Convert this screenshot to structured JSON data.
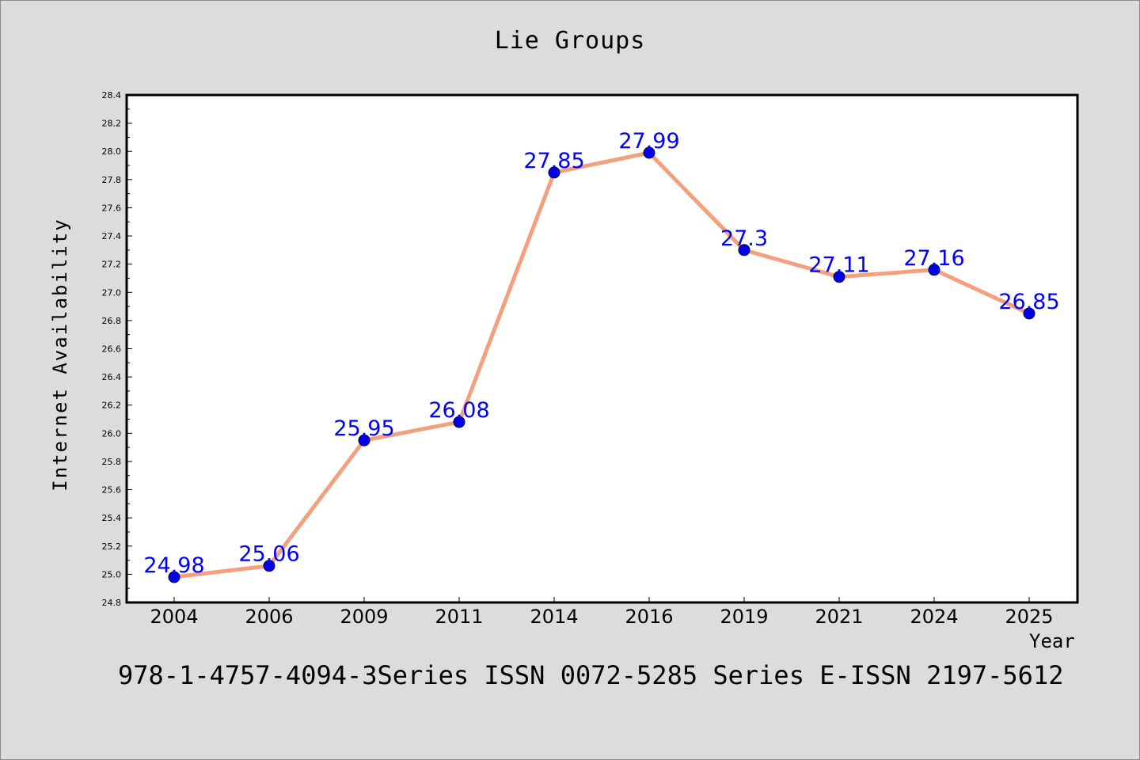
{
  "chart_data": {
    "type": "line",
    "title": "Lie Groups",
    "xlabel": "Year",
    "ylabel": "Internet Availability",
    "categories": [
      "2004",
      "2006",
      "2009",
      "2011",
      "2014",
      "2016",
      "2019",
      "2021",
      "2024",
      "2025"
    ],
    "values": [
      24.98,
      25.06,
      25.95,
      26.08,
      27.85,
      27.99,
      27.3,
      27.11,
      27.16,
      26.85
    ],
    "data_labels": [
      "24.98",
      "25.06",
      "25.95",
      "26.08",
      "27.85",
      "27.99",
      "27.3",
      "27.11",
      "27.16",
      "26.85"
    ],
    "ylim": [
      24.8,
      28.4
    ],
    "y_ticks": [
      "24.8",
      "25.0",
      "25.2",
      "25.4",
      "25.6",
      "25.8",
      "26.0",
      "26.2",
      "26.4",
      "26.6",
      "26.8",
      "27.0",
      "27.2",
      "27.4",
      "27.6",
      "27.8",
      "28.0",
      "28.2",
      "28.4"
    ],
    "grid": false,
    "legend": "none",
    "colors": {
      "line": "#f4a07f",
      "marker": "#0000ee",
      "label": "#0000ff",
      "background": "#dcdcdc",
      "plot_background": "#ffffff"
    }
  },
  "footer": "978-1-4757-4094-3Series ISSN 0072-5285 Series E-ISSN 2197-5612"
}
